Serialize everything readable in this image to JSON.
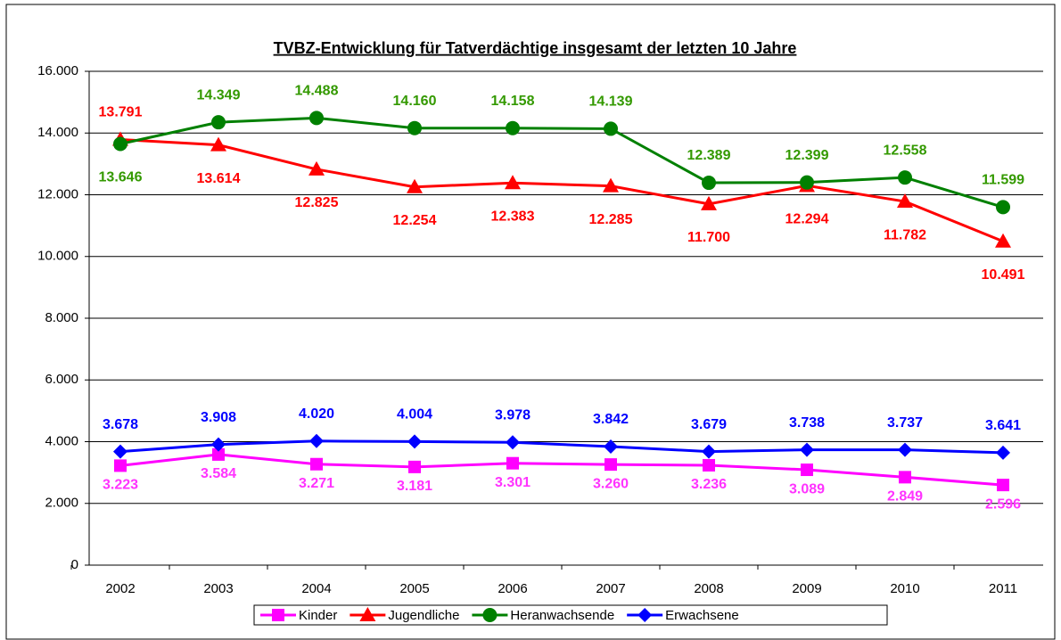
{
  "chart_data": {
    "type": "line",
    "title": "TVBZ-Entwicklung für Tatverdächtige insgesamt der letzten 10 Jahre",
    "categories": [
      "2002",
      "2003",
      "2004",
      "2005",
      "2006",
      "2007",
      "2008",
      "2009",
      "2010",
      "2011"
    ],
    "ylim": [
      0,
      16000
    ],
    "yticks": [
      0,
      {
        "value": 2000,
        "label": "2.000"
      },
      {
        "value": 4000,
        "label": "4.000"
      },
      {
        "value": 6000,
        "label": "6.000"
      },
      {
        "value": 8000,
        "label": "8.000"
      },
      {
        "value": 10000,
        "label": "10.000"
      },
      {
        "value": 12000,
        "label": "12.000"
      },
      {
        "value": 14000,
        "label": "14.000"
      },
      {
        "value": 16000,
        "label": "16.000"
      }
    ],
    "grid": true,
    "legend": "bottom",
    "series": [
      {
        "name": "Kinder",
        "color": "#ff00ff",
        "marker": "square",
        "values": [
          3223,
          3584,
          3271,
          3181,
          3301,
          3260,
          3236,
          3089,
          2849,
          2596
        ],
        "value_labels": [
          "3.223",
          "3.584",
          "3.271",
          "3.181",
          "3.301",
          "3.260",
          "3.236",
          "3.089",
          "2.849",
          "2.596"
        ]
      },
      {
        "name": "Jugendliche",
        "color": "#ff0000",
        "marker": "triangle",
        "values": [
          13791,
          13614,
          12825,
          12254,
          12383,
          12285,
          11700,
          12294,
          11782,
          10491
        ],
        "value_labels": [
          "13.791",
          "13.614",
          "12.825",
          "12.254",
          "12.383",
          "12.285",
          "11.700",
          "12.294",
          "11.782",
          "10.491"
        ]
      },
      {
        "name": "Heranwachsende",
        "color": "#008000",
        "marker": "circle",
        "values": [
          13646,
          14349,
          14488,
          14160,
          14158,
          14139,
          12389,
          12399,
          12558,
          11599
        ],
        "value_labels": [
          "13.646",
          "14.349",
          "14.488",
          "14.160",
          "14.158",
          "14.139",
          "12.389",
          "12.399",
          "12.558",
          "11.599"
        ]
      },
      {
        "name": "Erwachsene",
        "color": "#0000ff",
        "marker": "diamond",
        "values": [
          3678,
          3908,
          4020,
          4004,
          3978,
          3842,
          3679,
          3738,
          3737,
          3641
        ],
        "value_labels": [
          "3.678",
          "3.908",
          "4.020",
          "4.004",
          "3.978",
          "3.842",
          "3.679",
          "3.738",
          "3.737",
          "3.641"
        ]
      }
    ]
  }
}
